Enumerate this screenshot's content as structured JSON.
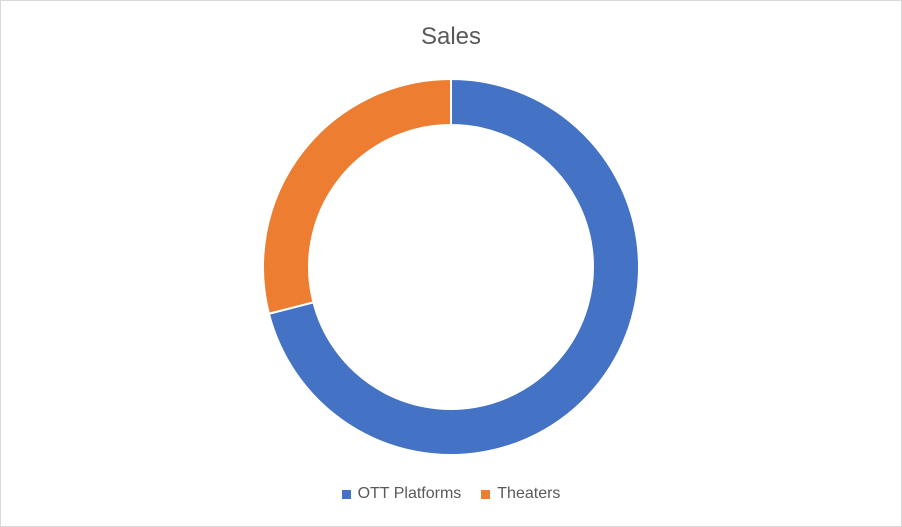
{
  "chart_data": {
    "type": "pie",
    "title": "Sales",
    "categories": [
      "OTT Platforms",
      "Theaters"
    ],
    "values": [
      71,
      29
    ],
    "colors": [
      "#4472c4",
      "#ed7d31"
    ],
    "legend_placement": "bottom"
  }
}
